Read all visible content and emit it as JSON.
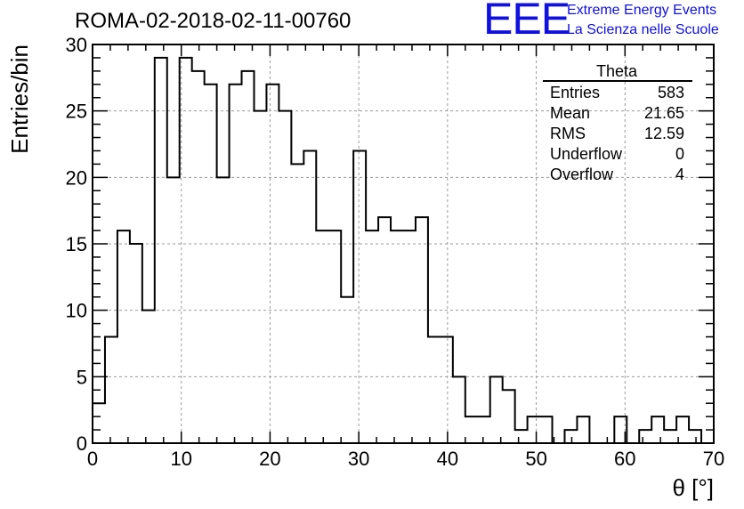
{
  "header": {
    "title": "ROMA-02-2018-02-11-00760",
    "logo_text": "EEE",
    "logo_line1": "Extreme Energy Events",
    "logo_line2": "La Scienza nelle Scuole",
    "logo_color": "#1010e0"
  },
  "stats_box": {
    "title": "Theta",
    "rows": [
      {
        "label": "Entries",
        "value": "583"
      },
      {
        "label": "Mean",
        "value": "21.65"
      },
      {
        "label": "RMS",
        "value": "12.59"
      },
      {
        "label": "Underflow",
        "value": "0"
      },
      {
        "label": "Overflow",
        "value": "4"
      }
    ]
  },
  "chart_data": {
    "type": "histogram",
    "xlabel": "θ [°]",
    "ylabel": "Entries/bin",
    "xlim": [
      0,
      70
    ],
    "ylim": [
      0,
      30
    ],
    "bin_width": 1.4,
    "grid": true,
    "x_ticks": [
      "0",
      "10",
      "20",
      "30",
      "40",
      "50",
      "60",
      "70"
    ],
    "y_ticks": [
      "0",
      "5",
      "10",
      "15",
      "20",
      "25",
      "30"
    ],
    "bin_edges_start": 0,
    "values": [
      3,
      8,
      16,
      15,
      10,
      29,
      20,
      29,
      28,
      27,
      20,
      27,
      28,
      25,
      27,
      25,
      21,
      22,
      16,
      16,
      11,
      22,
      16,
      17,
      16,
      16,
      17,
      8,
      8,
      5,
      2,
      2,
      5,
      4,
      1,
      2,
      2,
      0,
      1,
      2,
      0,
      0,
      2,
      0,
      1,
      2,
      1,
      2,
      1,
      0
    ]
  }
}
